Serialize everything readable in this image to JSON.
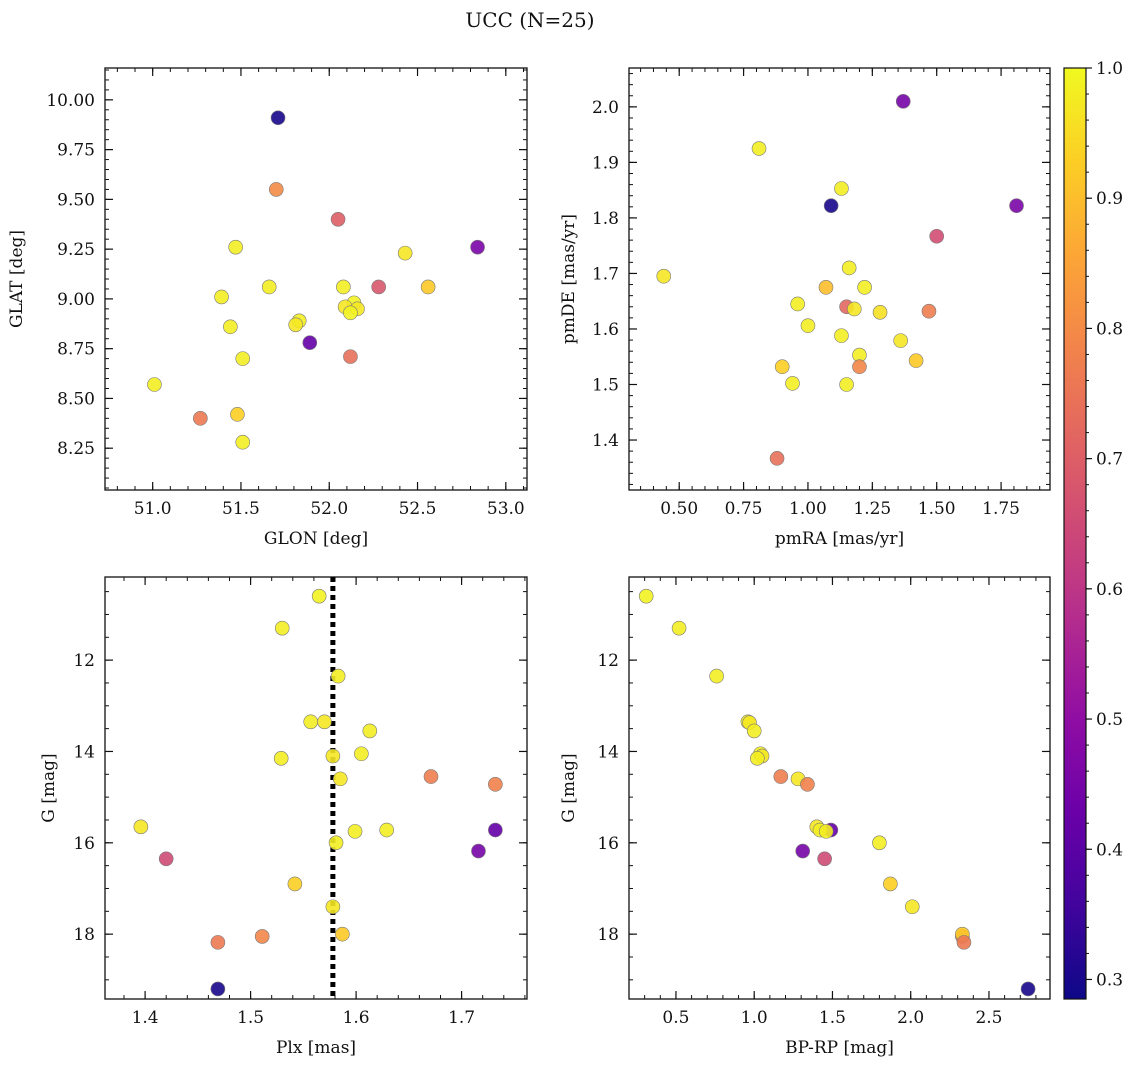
{
  "figure": {
    "title": "UCC (N=25)"
  },
  "colorbar": {
    "colormap": "plasma",
    "range": [
      0.285,
      1.0
    ],
    "ticks": [
      0.3,
      0.4,
      0.5,
      0.6,
      0.7,
      0.8,
      0.9,
      1.0
    ],
    "tick_labels": [
      "0.3",
      "0.4",
      "0.5",
      "0.6",
      "0.7",
      "0.8",
      "0.9",
      "1.0"
    ]
  },
  "chart_data": [
    {
      "type": "scatter",
      "id": "glon-glat",
      "xlabel": "GLON [deg]",
      "ylabel": "GLAT [deg]",
      "xlim": [
        50.73,
        53.12
      ],
      "ylim": [
        8.04,
        10.16
      ],
      "xticks": [
        51.0,
        51.5,
        52.0,
        52.5,
        53.0
      ],
      "xtick_labels": [
        "51.0",
        "51.5",
        "52.0",
        "52.5",
        "53.0"
      ],
      "yticks": [
        8.25,
        8.5,
        8.75,
        9.0,
        9.25,
        9.5,
        9.75,
        10.0
      ],
      "ytick_labels": [
        "8.25",
        "8.50",
        "8.75",
        "9.00",
        "9.25",
        "9.50",
        "9.75",
        "10.00"
      ],
      "points": [
        {
          "x": 51.71,
          "y": 9.91,
          "c": 0.3
        },
        {
          "x": 51.7,
          "y": 9.55,
          "c": 0.8
        },
        {
          "x": 52.05,
          "y": 9.4,
          "c": 0.7
        },
        {
          "x": 52.84,
          "y": 9.26,
          "c": 0.46
        },
        {
          "x": 51.47,
          "y": 9.26,
          "c": 0.98
        },
        {
          "x": 52.43,
          "y": 9.23,
          "c": 0.97
        },
        {
          "x": 52.28,
          "y": 9.06,
          "c": 0.68
        },
        {
          "x": 51.66,
          "y": 9.06,
          "c": 0.98
        },
        {
          "x": 52.08,
          "y": 9.06,
          "c": 0.98
        },
        {
          "x": 52.56,
          "y": 9.06,
          "c": 0.92
        },
        {
          "x": 51.39,
          "y": 9.01,
          "c": 0.98
        },
        {
          "x": 52.14,
          "y": 8.98,
          "c": 0.99
        },
        {
          "x": 52.09,
          "y": 8.96,
          "c": 0.97
        },
        {
          "x": 52.16,
          "y": 8.95,
          "c": 0.97
        },
        {
          "x": 52.12,
          "y": 8.93,
          "c": 0.99
        },
        {
          "x": 51.83,
          "y": 8.89,
          "c": 0.98
        },
        {
          "x": 51.81,
          "y": 8.87,
          "c": 0.97
        },
        {
          "x": 51.44,
          "y": 8.86,
          "c": 0.98
        },
        {
          "x": 51.89,
          "y": 8.78,
          "c": 0.42
        },
        {
          "x": 52.12,
          "y": 8.71,
          "c": 0.74
        },
        {
          "x": 51.51,
          "y": 8.7,
          "c": 0.98
        },
        {
          "x": 51.01,
          "y": 8.57,
          "c": 0.98
        },
        {
          "x": 51.48,
          "y": 8.42,
          "c": 0.93
        },
        {
          "x": 51.27,
          "y": 8.4,
          "c": 0.76
        },
        {
          "x": 51.51,
          "y": 8.28,
          "c": 0.98
        }
      ]
    },
    {
      "type": "scatter",
      "id": "pmra-pmde",
      "xlabel": "pmRA [mas/yr]",
      "ylabel": "pmDE [mas/yr]",
      "xlim": [
        0.305,
        1.94
      ],
      "ylim": [
        1.31,
        2.07
      ],
      "xticks": [
        0.5,
        0.75,
        1.0,
        1.25,
        1.5,
        1.75
      ],
      "xtick_labels": [
        "0.50",
        "0.75",
        "1.00",
        "1.25",
        "1.50",
        "1.75"
      ],
      "yticks": [
        1.4,
        1.5,
        1.6,
        1.7,
        1.8,
        1.9,
        2.0
      ],
      "ytick_labels": [
        "1.4",
        "1.5",
        "1.6",
        "1.7",
        "1.8",
        "1.9",
        "2.0"
      ],
      "points": [
        {
          "x": 1.37,
          "y": 2.01,
          "c": 0.45
        },
        {
          "x": 0.81,
          "y": 1.925,
          "c": 0.98
        },
        {
          "x": 1.13,
          "y": 1.853,
          "c": 0.98
        },
        {
          "x": 1.09,
          "y": 1.822,
          "c": 0.3
        },
        {
          "x": 1.81,
          "y": 1.822,
          "c": 0.46
        },
        {
          "x": 1.5,
          "y": 1.767,
          "c": 0.66
        },
        {
          "x": 1.16,
          "y": 1.71,
          "c": 0.98
        },
        {
          "x": 0.44,
          "y": 1.695,
          "c": 0.97
        },
        {
          "x": 1.07,
          "y": 1.675,
          "c": 0.9
        },
        {
          "x": 1.22,
          "y": 1.675,
          "c": 0.98
        },
        {
          "x": 0.96,
          "y": 1.645,
          "c": 0.98
        },
        {
          "x": 1.15,
          "y": 1.64,
          "c": 0.72
        },
        {
          "x": 1.18,
          "y": 1.636,
          "c": 0.97
        },
        {
          "x": 1.28,
          "y": 1.63,
          "c": 0.96
        },
        {
          "x": 1.47,
          "y": 1.632,
          "c": 0.77
        },
        {
          "x": 1.0,
          "y": 1.606,
          "c": 0.98
        },
        {
          "x": 1.13,
          "y": 1.588,
          "c": 0.98
        },
        {
          "x": 1.36,
          "y": 1.579,
          "c": 0.97
        },
        {
          "x": 1.2,
          "y": 1.553,
          "c": 0.98
        },
        {
          "x": 1.42,
          "y": 1.543,
          "c": 0.92
        },
        {
          "x": 0.9,
          "y": 1.532,
          "c": 0.93
        },
        {
          "x": 1.2,
          "y": 1.532,
          "c": 0.79
        },
        {
          "x": 0.94,
          "y": 1.502,
          "c": 0.98
        },
        {
          "x": 1.15,
          "y": 1.5,
          "c": 0.98
        },
        {
          "x": 0.88,
          "y": 1.367,
          "c": 0.74
        }
      ]
    },
    {
      "type": "scatter",
      "id": "plx-g",
      "xlabel": "Plx [mas]",
      "ylabel": "G [mag]",
      "xlim": [
        1.362,
        1.762
      ],
      "ylim": [
        19.42,
        10.18
      ],
      "y_inverted": true,
      "xticks": [
        1.4,
        1.5,
        1.6,
        1.7
      ],
      "xtick_labels": [
        "1.4",
        "1.5",
        "1.6",
        "1.7"
      ],
      "yticks": [
        12,
        14,
        16,
        18
      ],
      "ytick_labels": [
        "12",
        "14",
        "16",
        "18"
      ],
      "vline": {
        "x": 1.578,
        "style": "dotted",
        "color": "#000000"
      },
      "points": [
        {
          "x": 1.565,
          "y": 10.6,
          "c": 0.99
        },
        {
          "x": 1.53,
          "y": 11.3,
          "c": 0.98
        },
        {
          "x": 1.583,
          "y": 12.35,
          "c": 0.98
        },
        {
          "x": 1.557,
          "y": 13.35,
          "c": 0.98
        },
        {
          "x": 1.57,
          "y": 13.35,
          "c": 0.97
        },
        {
          "x": 1.613,
          "y": 13.55,
          "c": 0.98
        },
        {
          "x": 1.605,
          "y": 14.05,
          "c": 0.98
        },
        {
          "x": 1.578,
          "y": 14.1,
          "c": 0.97
        },
        {
          "x": 1.529,
          "y": 14.15,
          "c": 0.98
        },
        {
          "x": 1.671,
          "y": 14.55,
          "c": 0.77
        },
        {
          "x": 1.585,
          "y": 14.6,
          "c": 0.97
        },
        {
          "x": 1.732,
          "y": 14.72,
          "c": 0.78
        },
        {
          "x": 1.396,
          "y": 15.65,
          "c": 0.97
        },
        {
          "x": 1.599,
          "y": 15.75,
          "c": 0.98
        },
        {
          "x": 1.629,
          "y": 15.72,
          "c": 0.98
        },
        {
          "x": 1.732,
          "y": 15.72,
          "c": 0.42
        },
        {
          "x": 1.581,
          "y": 16.0,
          "c": 0.98
        },
        {
          "x": 1.716,
          "y": 16.18,
          "c": 0.45
        },
        {
          "x": 1.42,
          "y": 16.35,
          "c": 0.65
        },
        {
          "x": 1.542,
          "y": 16.9,
          "c": 0.93
        },
        {
          "x": 1.578,
          "y": 17.4,
          "c": 0.97
        },
        {
          "x": 1.511,
          "y": 18.05,
          "c": 0.79
        },
        {
          "x": 1.587,
          "y": 18.0,
          "c": 0.92
        },
        {
          "x": 1.469,
          "y": 18.18,
          "c": 0.76
        },
        {
          "x": 1.469,
          "y": 19.2,
          "c": 0.3
        }
      ]
    },
    {
      "type": "scatter",
      "id": "bprp-g",
      "xlabel": "BP-RP [mag]",
      "ylabel": "G [mag]",
      "xlim": [
        0.2,
        2.89
      ],
      "ylim": [
        19.42,
        10.18
      ],
      "y_inverted": true,
      "xticks": [
        0.5,
        1.0,
        1.5,
        2.0,
        2.5
      ],
      "xtick_labels": [
        "0.5",
        "1.0",
        "1.5",
        "2.0",
        "2.5"
      ],
      "yticks": [
        12,
        14,
        16,
        18
      ],
      "ytick_labels": [
        "12",
        "14",
        "16",
        "18"
      ],
      "points": [
        {
          "x": 0.31,
          "y": 10.6,
          "c": 0.99
        },
        {
          "x": 0.52,
          "y": 11.3,
          "c": 0.98
        },
        {
          "x": 0.76,
          "y": 12.35,
          "c": 0.98
        },
        {
          "x": 0.96,
          "y": 13.35,
          "c": 0.98
        },
        {
          "x": 0.97,
          "y": 13.37,
          "c": 0.97
        },
        {
          "x": 1.0,
          "y": 13.55,
          "c": 0.98
        },
        {
          "x": 1.04,
          "y": 14.05,
          "c": 0.98
        },
        {
          "x": 1.05,
          "y": 14.1,
          "c": 0.97
        },
        {
          "x": 1.02,
          "y": 14.15,
          "c": 0.98
        },
        {
          "x": 1.17,
          "y": 14.55,
          "c": 0.77
        },
        {
          "x": 1.28,
          "y": 14.6,
          "c": 0.97
        },
        {
          "x": 1.34,
          "y": 14.72,
          "c": 0.78
        },
        {
          "x": 1.4,
          "y": 15.65,
          "c": 0.97
        },
        {
          "x": 1.49,
          "y": 15.72,
          "c": 0.42
        },
        {
          "x": 1.42,
          "y": 15.72,
          "c": 0.98
        },
        {
          "x": 1.46,
          "y": 15.75,
          "c": 0.98
        },
        {
          "x": 1.8,
          "y": 16.0,
          "c": 0.98
        },
        {
          "x": 1.31,
          "y": 16.18,
          "c": 0.45
        },
        {
          "x": 1.45,
          "y": 16.35,
          "c": 0.65
        },
        {
          "x": 1.87,
          "y": 16.9,
          "c": 0.93
        },
        {
          "x": 2.01,
          "y": 17.4,
          "c": 0.97
        },
        {
          "x": 2.33,
          "y": 18.05,
          "c": 0.79
        },
        {
          "x": 2.33,
          "y": 18.0,
          "c": 0.92
        },
        {
          "x": 2.34,
          "y": 18.18,
          "c": 0.76
        },
        {
          "x": 2.75,
          "y": 19.2,
          "c": 0.3
        }
      ]
    }
  ]
}
